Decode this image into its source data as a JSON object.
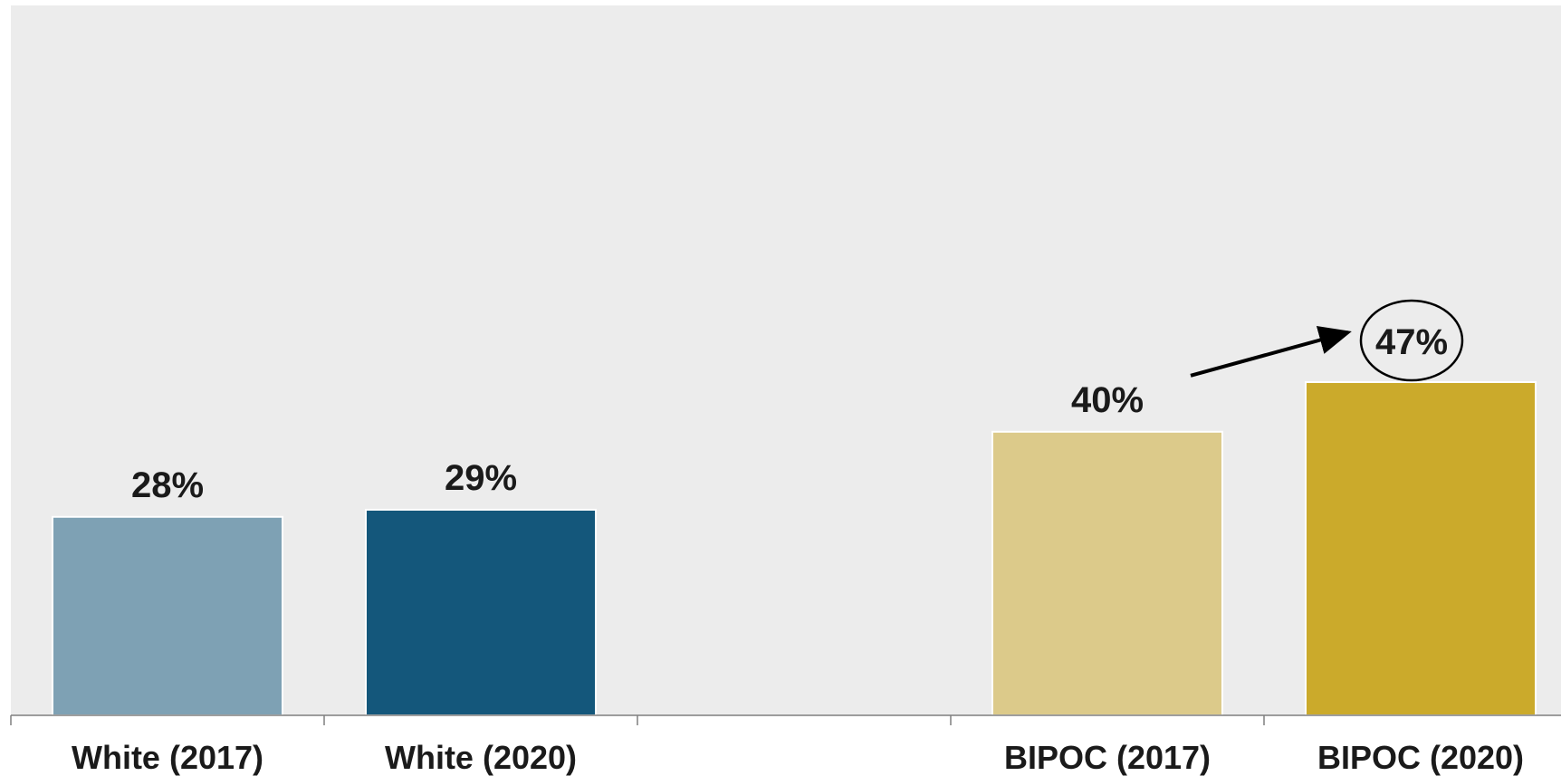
{
  "chart_data": {
    "type": "bar",
    "title": "",
    "xlabel": "",
    "ylabel": "",
    "ylim": [
      0,
      100
    ],
    "grid": false,
    "legend": "none",
    "categories": [
      "White (2017)",
      "White (2020)",
      "",
      "BIPOC (2017)",
      "BIPOC (2020)"
    ],
    "values": [
      28,
      29,
      null,
      40,
      47
    ],
    "value_labels": [
      "28%",
      "29%",
      "",
      "40%",
      "47%"
    ],
    "colors": [
      "#7ea1b4",
      "#14577b",
      null,
      "#dcca8a",
      "#cbaa2b"
    ],
    "annotation": {
      "type": "arrow-to-circled-label",
      "from_category": "BIPOC (2017)",
      "to_category": "BIPOC (2020)",
      "circled_label": "47%"
    },
    "plot_background": "#ececec",
    "axis_color": "#7f7f7f",
    "text_color": "#1a1a1a"
  }
}
